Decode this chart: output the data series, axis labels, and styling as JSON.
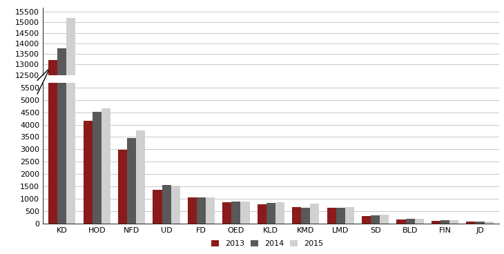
{
  "categories": [
    "KD",
    "HOD",
    "NFD",
    "UD",
    "FD",
    "OED",
    "KLD",
    "KMD",
    "LMD",
    "SD",
    "BLD",
    "FIN",
    "JD"
  ],
  "values_2013": [
    13200,
    4150,
    2980,
    1350,
    1060,
    850,
    790,
    670,
    640,
    310,
    175,
    120,
    80
  ],
  "values_2014": [
    13780,
    4530,
    3450,
    1550,
    1050,
    880,
    830,
    640,
    640,
    340,
    185,
    130,
    90
  ],
  "values_2015": [
    15200,
    4650,
    3750,
    1530,
    1060,
    880,
    850,
    800,
    670,
    360,
    190,
    130,
    90
  ],
  "color_2013": "#8B1A1A",
  "color_2014": "#595959",
  "color_2015": "#D0D0D0",
  "upper_ylim": [
    12500,
    15700
  ],
  "lower_ylim": [
    0,
    5700
  ],
  "upper_yticks": [
    12500,
    13000,
    13500,
    14000,
    14500,
    15000,
    15500
  ],
  "lower_yticks": [
    0,
    500,
    1000,
    1500,
    2000,
    2500,
    3000,
    3500,
    4000,
    4500,
    5000,
    5500
  ],
  "legend_labels": [
    "2013",
    "2014",
    "2015"
  ],
  "background_color": "#FFFFFF",
  "grid_color": "#C8C8C8",
  "bar_width": 0.26
}
